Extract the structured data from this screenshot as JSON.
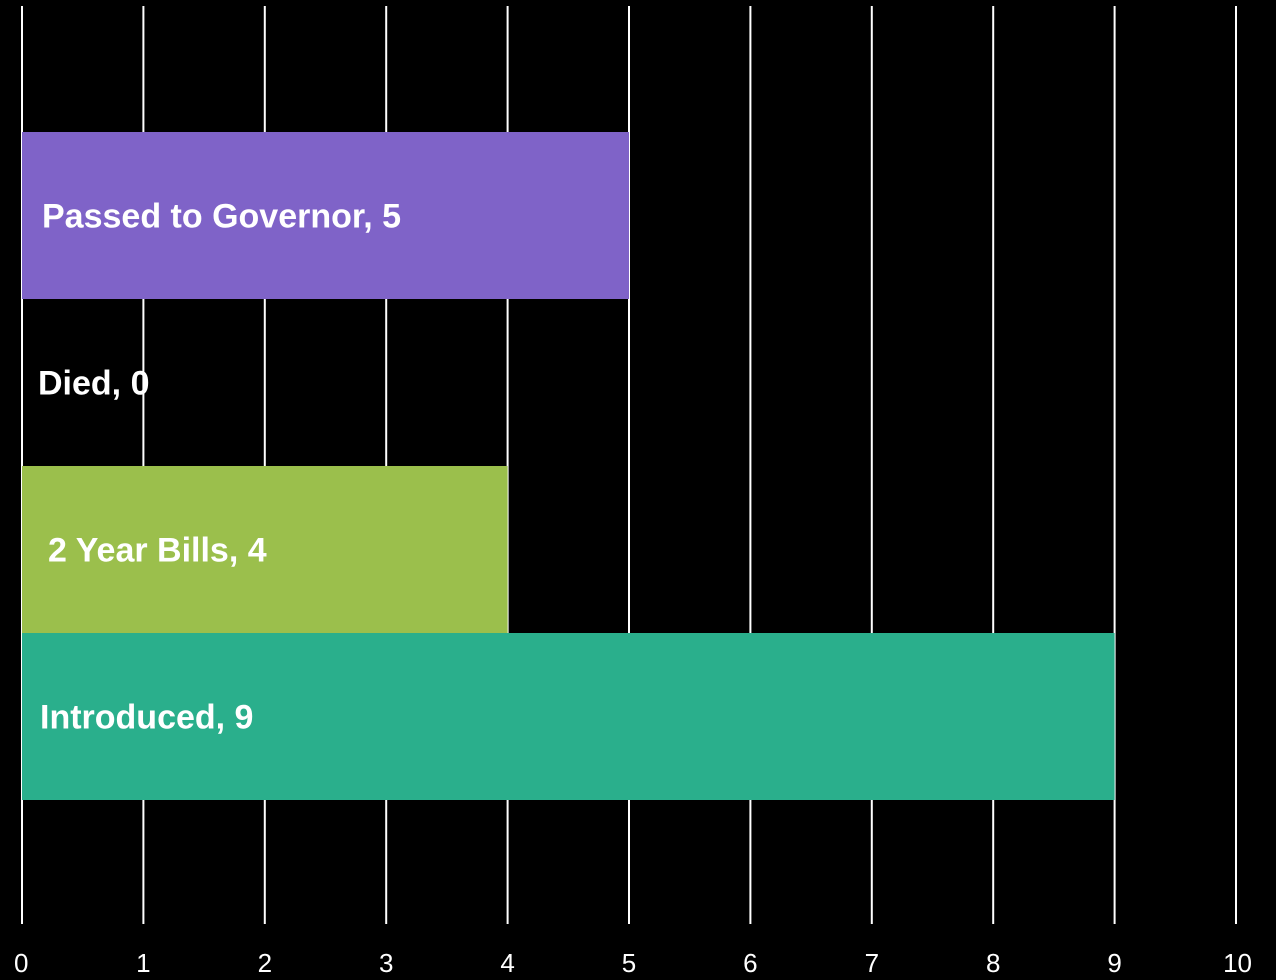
{
  "chart_data": {
    "type": "bar",
    "orientation": "horizontal",
    "categories": [
      "Introduced",
      "2 Year Bills",
      "Died",
      "Passed to Governor"
    ],
    "values": [
      9,
      4,
      0,
      5
    ],
    "data_labels": [
      "Introduced, 9",
      "2 Year Bills, 4",
      "Died, 0",
      "Passed to Governor, 5"
    ],
    "colors": [
      "#2aaf8c",
      "#9bbf4c",
      "#000000",
      "#7f63c8"
    ],
    "xlim": [
      0,
      10
    ],
    "x_ticks": [
      "0",
      "1",
      "2",
      "3",
      "4",
      "5",
      "6",
      "7",
      "8",
      "9",
      "10"
    ],
    "grid": true,
    "legend": false,
    "background": "#000000"
  }
}
